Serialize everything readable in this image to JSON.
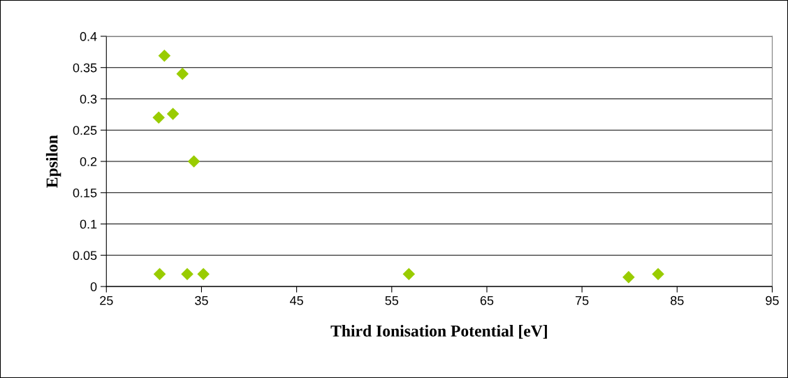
{
  "chart_data": {
    "type": "scatter",
    "xlabel": "Third Ionisation Potential [eV]",
    "ylabel": "Epsilon",
    "x": [
      31.1,
      33.0,
      32.0,
      30.5,
      34.2,
      30.6,
      33.5,
      35.2,
      56.8,
      79.9,
      83.0
    ],
    "series": [
      {
        "color": "#99cc00",
        "values": [
          0.369,
          0.34,
          0.276,
          0.27,
          0.2,
          0.02,
          0.02,
          0.02,
          0.02,
          0.015,
          0.02
        ]
      }
    ],
    "marker": "diamond",
    "xlim": [
      25,
      95
    ],
    "xticks": [
      25,
      35,
      45,
      55,
      65,
      75,
      85,
      95
    ],
    "ylim": [
      0,
      0.4
    ],
    "yticks": [
      0,
      0.05,
      0.1,
      0.15,
      0.2,
      0.25,
      0.3,
      0.35,
      0.4
    ],
    "grid": "y"
  }
}
